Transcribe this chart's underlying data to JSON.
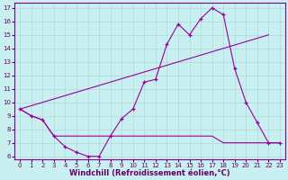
{
  "xlabel": "Windchill (Refroidissement éolien,°C)",
  "bg_color": "#c8f0f0",
  "grid_color": "#b0d8d8",
  "line_color": "#990099",
  "xlim": [
    -0.5,
    23.5
  ],
  "ylim": [
    5.8,
    17.4
  ],
  "xticks": [
    0,
    1,
    2,
    3,
    4,
    5,
    6,
    7,
    8,
    9,
    10,
    11,
    12,
    13,
    14,
    15,
    16,
    17,
    18,
    19,
    20,
    21,
    22,
    23
  ],
  "yticks": [
    6,
    7,
    8,
    9,
    10,
    11,
    12,
    13,
    14,
    15,
    16,
    17
  ],
  "series1_x": [
    0,
    1,
    2,
    3,
    4,
    5,
    6,
    7,
    8,
    9,
    10,
    11,
    12,
    13,
    14,
    15,
    16,
    17,
    18,
    19,
    20,
    21,
    22,
    23
  ],
  "series1_y": [
    9.5,
    9.0,
    8.7,
    7.5,
    6.7,
    6.3,
    6.0,
    6.0,
    7.5,
    8.8,
    9.5,
    11.5,
    11.7,
    14.3,
    15.8,
    15.0,
    16.2,
    17.0,
    16.5,
    12.5,
    10.0,
    8.5,
    7.0,
    7.0
  ],
  "series2_x": [
    0,
    22
  ],
  "series2_y": [
    9.5,
    15.0
  ],
  "series3_x": [
    0,
    1,
    2,
    3,
    7,
    8,
    9,
    10,
    11,
    12,
    13,
    14,
    15,
    16,
    17,
    18,
    19,
    20,
    21,
    22,
    23
  ],
  "series3_y": [
    9.5,
    9.0,
    8.7,
    7.5,
    7.5,
    7.5,
    7.5,
    7.5,
    7.5,
    7.5,
    7.5,
    7.5,
    7.5,
    7.5,
    7.5,
    7.0,
    7.0,
    7.0,
    7.0,
    7.0,
    7.0
  ],
  "xlabel_fontsize": 6,
  "tick_fontsize": 5
}
